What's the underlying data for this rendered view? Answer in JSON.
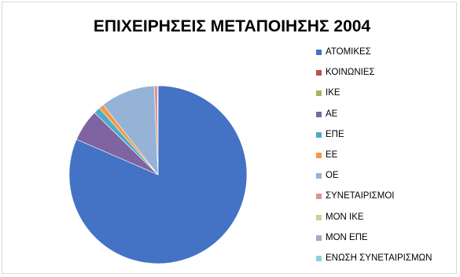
{
  "chart_data": {
    "type": "pie",
    "title": "ΕΠΙΧΕΙΡΗΣΕΙΣ ΜΕΤΑΠΟΙΗΣΗΣ 2004",
    "legend_position": "right",
    "categories": [
      "ΑΤΟΜΙΚΕΣ",
      "ΚΟΙΝΩΝΙΕΣ",
      "ΙΚΕ",
      "ΑΕ",
      "ΕΠΕ",
      "ΕΕ",
      "ΟΕ",
      "ΣΥΝΕΤΑΙΡΙΣΜΟΙ",
      "ΜΟΝ ΙΚΕ",
      "ΜΟΝ ΕΠΕ",
      "ΕΝΩΣΗ ΣΥΝΕΤΑΙΡΙΣΜΩΝ"
    ],
    "values": [
      81.5,
      0.0,
      0.0,
      5.8,
      1.2,
      0.9,
      9.9,
      0.6,
      0.0,
      0.1,
      0.0
    ],
    "colors": [
      "#4472C4",
      "#C0504D",
      "#9BBB59",
      "#8064A2",
      "#4BACC6",
      "#F79646",
      "#95B3D7",
      "#DA9694",
      "#C3D69B",
      "#B1A0C7",
      "#92CDDC"
    ]
  }
}
